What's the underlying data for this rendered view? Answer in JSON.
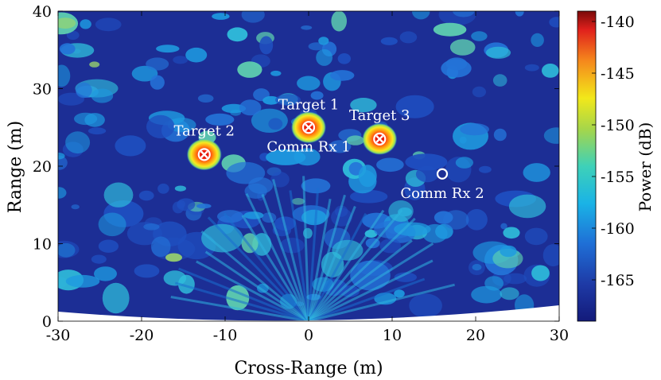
{
  "chart_data": {
    "type": "heatmap",
    "title": "",
    "xlabel": "Cross-Range (m)",
    "ylabel": "Range (m)",
    "xlim": [
      -30,
      30
    ],
    "ylim": [
      0,
      40
    ],
    "xticks": [
      -30,
      -20,
      -10,
      0,
      10,
      20,
      30
    ],
    "yticks": [
      0,
      10,
      20,
      30,
      40
    ],
    "xtick_labels": [
      "-30",
      "-20",
      "-10",
      "0",
      "10",
      "20",
      "30"
    ],
    "ytick_labels": [
      "0",
      "10",
      "20",
      "30",
      "40"
    ],
    "colorbar": {
      "label": "Power (dB)",
      "range": [
        -169,
        -139
      ],
      "ticks": [
        -140,
        -145,
        -150,
        -155,
        -160,
        -165
      ],
      "tick_labels": [
        "-140",
        "-145",
        "-150",
        "-155",
        "-160",
        "-165"
      ],
      "colormap": "jet"
    },
    "targets": [
      {
        "label": "Target 1",
        "x": 0,
        "y": 25
      },
      {
        "label": "Target 2",
        "x": -12.5,
        "y": 21.5
      },
      {
        "label": "Target 3",
        "x": 8.5,
        "y": 23.5
      }
    ],
    "comm_receivers": [
      {
        "label": "Comm Rx 1",
        "x": 0,
        "y": 25
      },
      {
        "label": "Comm Rx 2",
        "x": 16,
        "y": 19
      }
    ],
    "grid": false,
    "legend": "none"
  }
}
